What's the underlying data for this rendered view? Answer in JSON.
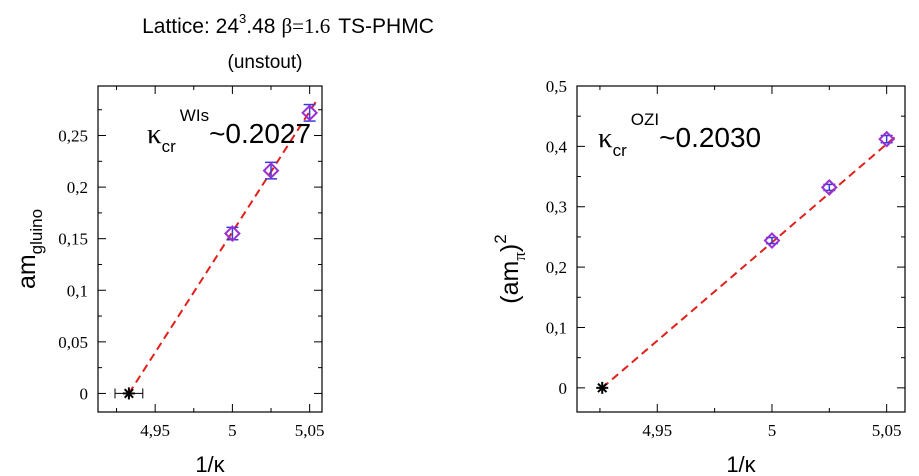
{
  "title": {
    "prefix": "Lattice: 24",
    "sup": "3",
    "mid": ".48",
    "beta": "β=1.6",
    "method": "TS-PHMC",
    "subtitle": "(unstout)"
  },
  "colors": {
    "marker": "#9b2fd6",
    "fit": "#e0201b",
    "errorbar": "#3a3ad8",
    "extrapolation": "#000000"
  },
  "chart_data": [
    {
      "type": "scatter",
      "id": "left",
      "xlabel": "1/κ",
      "ylabel": {
        "base": "am",
        "sub": "gluino"
      },
      "annotation": {
        "symbol": "κ",
        "sub": "cr",
        "sup": "WIs",
        "value": "~0.2027"
      },
      "xlim": [
        4.913,
        5.058
      ],
      "ylim": [
        -0.018,
        0.298
      ],
      "xticks": [
        4.95,
        5.0,
        5.05
      ],
      "xtick_labels": [
        "4,95",
        "5",
        "5,05"
      ],
      "yticks": [
        0,
        0.05,
        0.1,
        0.15,
        0.2,
        0.25
      ],
      "ytick_labels": [
        "0",
        "0,05",
        "0,1",
        "0,15",
        "0,2",
        "0,25"
      ],
      "series": [
        {
          "marker": "diamond",
          "points": [
            {
              "x": 5.0,
              "y": 0.155,
              "yerr": 0.006
            },
            {
              "x": 5.025,
              "y": 0.216,
              "yerr": 0.008
            },
            {
              "x": 5.05,
              "y": 0.272,
              "yerr": 0.008
            }
          ]
        }
      ],
      "extrapolated_point": {
        "x": 4.933,
        "y": 0.0,
        "xerr": 0.009
      },
      "fit_line": {
        "from": [
          4.933,
          0.0
        ],
        "to": [
          5.055,
          0.285
        ]
      }
    },
    {
      "type": "scatter",
      "id": "right",
      "xlabel": "1/κ",
      "ylabel": {
        "base": "(am",
        "sub": "π",
        "close": ")",
        "sup": "2"
      },
      "annotation": {
        "symbol": "κ",
        "sub": "cr",
        "sup": "OZI",
        "value": "~0.2030"
      },
      "xlim": [
        4.915,
        5.058
      ],
      "ylim": [
        -0.04,
        0.5
      ],
      "xticks": [
        4.95,
        5.0,
        5.05
      ],
      "xtick_labels": [
        "4,95",
        "5",
        "5,05"
      ],
      "yticks": [
        0,
        0.1,
        0.2,
        0.3,
        0.4,
        0.5
      ],
      "ytick_labels": [
        "0",
        "0,1",
        "0,2",
        "0,3",
        "0,4",
        "0,5"
      ],
      "series": [
        {
          "marker": "diamond",
          "points": [
            {
              "x": 5.0,
              "y": 0.244,
              "yerr": 0.005
            },
            {
              "x": 5.025,
              "y": 0.332,
              "yerr": 0.005
            },
            {
              "x": 5.05,
              "y": 0.412,
              "yerr": 0.006
            }
          ]
        }
      ],
      "extrapolated_point": {
        "x": 4.926,
        "y": 0.0,
        "xerr": 0.001
      },
      "fit_line": {
        "from": [
          4.926,
          0.0
        ],
        "to": [
          5.055,
          0.42
        ]
      }
    }
  ]
}
